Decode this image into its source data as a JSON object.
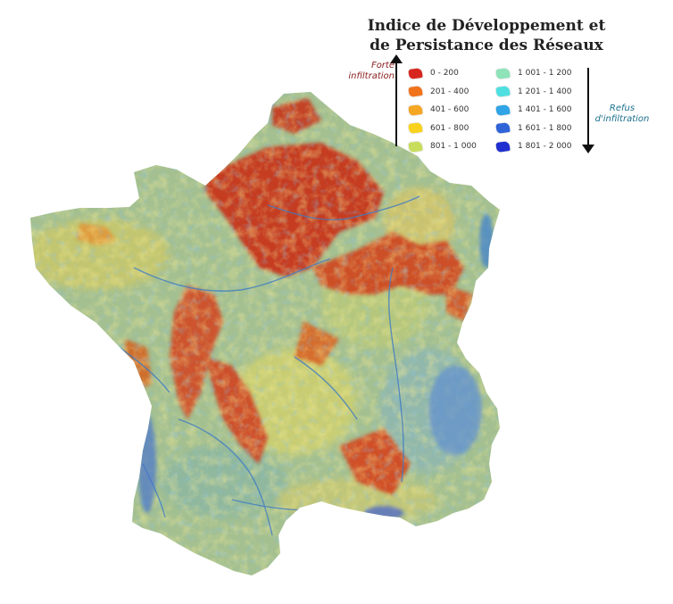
{
  "title": {
    "line1": "Indice de Développement et",
    "line2": "de Persistance des Réseaux"
  },
  "legend": {
    "top_label_line1": "Forte",
    "top_label_line2": "infiltration",
    "bottom_label_line1": "Refus",
    "bottom_label_line2": "d'infiltration",
    "classes": [
      {
        "range": "0 - 200",
        "color": "#d7261e"
      },
      {
        "range": "201 - 400",
        "color": "#f0731c"
      },
      {
        "range": "401 - 600",
        "color": "#f5a623"
      },
      {
        "range": "601 - 800",
        "color": "#f8d21c"
      },
      {
        "range": "801 - 1 000",
        "color": "#c9dd5c"
      },
      {
        "range": "1 001 - 1 200",
        "color": "#8fe3b8"
      },
      {
        "range": "1 201 - 1 400",
        "color": "#4fdfe0"
      },
      {
        "range": "1 401 - 1 600",
        "color": "#2fa4e7"
      },
      {
        "range": "1 601 - 1 800",
        "color": "#2f63d8"
      },
      {
        "range": "1 801 - 2 000",
        "color": "#1f2fd0"
      }
    ]
  },
  "map": {
    "region": "France",
    "base_color": "#9fbe96",
    "river_color": "#3f7cc4"
  }
}
